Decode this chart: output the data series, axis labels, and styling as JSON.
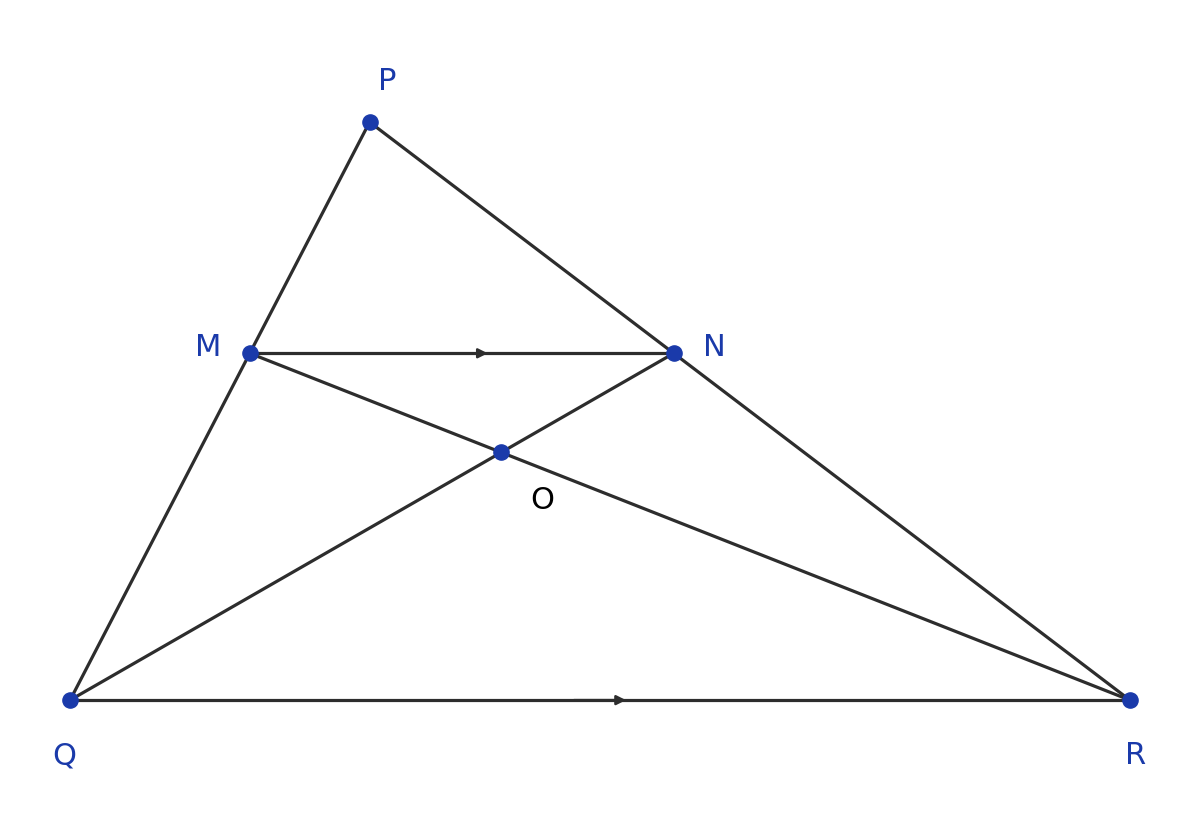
{
  "P": [
    0.3,
    0.87
  ],
  "Q": [
    0.04,
    0.1
  ],
  "R": [
    0.96,
    0.1
  ],
  "ratio": 0.4,
  "point_color": "#1a3aaa",
  "line_color": "#2d2d2d",
  "label_color": "#1a3aaa",
  "O_label_color": "#000000",
  "point_size": 120,
  "line_width": 2.3,
  "font_size": 22,
  "background_color": "#ffffff",
  "xlim": [
    0,
    1
  ],
  "ylim": [
    0,
    1
  ],
  "fig_width": 12.0,
  "fig_height": 8.16,
  "dpi": 100
}
